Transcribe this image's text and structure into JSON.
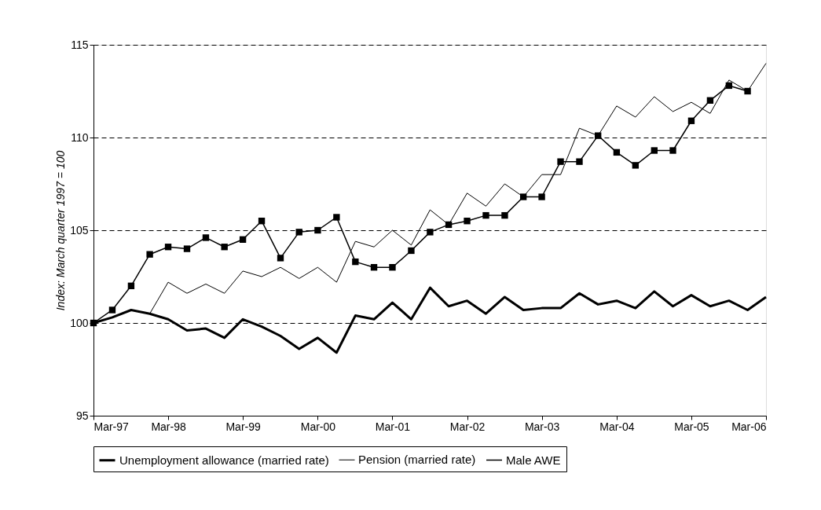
{
  "chart_data": {
    "type": "line",
    "ylabel": "Index: March quarter 1997 = 100",
    "x": [
      "1997-03",
      "1997-06",
      "1997-09",
      "1997-12",
      "1998-03",
      "1998-06",
      "1998-09",
      "1998-12",
      "1999-03",
      "1999-06",
      "1999-09",
      "1999-12",
      "2000-03",
      "2000-06",
      "2000-09",
      "2000-12",
      "2001-03",
      "2001-06",
      "2001-09",
      "2001-12",
      "2002-03",
      "2002-06",
      "2002-09",
      "2002-12",
      "2003-03",
      "2003-06",
      "2003-09",
      "2003-12",
      "2004-03",
      "2004-06",
      "2004-09",
      "2004-12",
      "2005-03",
      "2005-06",
      "2005-09",
      "2005-12",
      "2006-03"
    ],
    "series": [
      {
        "name": "Unemployment allowance (married rate)",
        "color": "#000000",
        "marker": "none",
        "values": [
          100.0,
          100.3,
          100.7,
          100.5,
          100.2,
          99.6,
          99.7,
          99.2,
          100.2,
          99.8,
          99.3,
          98.6,
          99.2,
          98.4,
          100.4,
          100.2,
          101.1,
          100.2,
          101.9,
          100.9,
          101.2,
          100.5,
          101.4,
          100.7,
          100.8,
          100.8,
          101.6,
          101.0,
          101.2,
          100.8,
          101.7,
          100.9,
          101.5,
          100.9,
          101.2,
          100.7,
          101.4
        ]
      },
      {
        "name": "Pension (married rate)",
        "color": "#000000",
        "marker": "none",
        "values": [
          100.0,
          100.3,
          100.7,
          100.5,
          102.2,
          101.6,
          102.1,
          101.6,
          102.8,
          102.5,
          103.0,
          102.4,
          103.0,
          102.2,
          104.4,
          104.1,
          105.0,
          104.2,
          106.1,
          105.3,
          107.0,
          106.3,
          107.5,
          106.8,
          108.0,
          108.0,
          110.5,
          110.1,
          111.7,
          111.1,
          112.2,
          111.4,
          111.9,
          111.3,
          113.1,
          112.5,
          114.0
        ]
      },
      {
        "name": "Male AWE",
        "color": "#000000",
        "marker": "square",
        "values": [
          100.0,
          100.7,
          102.0,
          103.7,
          104.1,
          104.0,
          104.6,
          104.1,
          104.5,
          105.5,
          103.5,
          104.9,
          105.0,
          105.7,
          103.3,
          103.0,
          103.0,
          103.9,
          104.9,
          105.3,
          105.5,
          105.8,
          105.8,
          106.8,
          106.8,
          108.7,
          108.7,
          110.1,
          109.2,
          108.5,
          109.3,
          109.3,
          110.9,
          112.0,
          112.8,
          112.5,
          null
        ]
      }
    ],
    "xlim": [
      "1997-03",
      "2006-03"
    ],
    "xticks": [
      {
        "value": "1997-03",
        "label": "Mar-97"
      },
      {
        "value": "1998-03",
        "label": "Mar-98"
      },
      {
        "value": "1999-03",
        "label": "Mar-99"
      },
      {
        "value": "2000-03",
        "label": "Mar-00"
      },
      {
        "value": "2001-03",
        "label": "Mar-01"
      },
      {
        "value": "2002-03",
        "label": "Mar-02"
      },
      {
        "value": "2003-03",
        "label": "Mar-03"
      },
      {
        "value": "2004-03",
        "label": "Mar-04"
      },
      {
        "value": "2005-03",
        "label": "Mar-05"
      },
      {
        "value": "2006-03",
        "label": "Mar-06"
      }
    ],
    "ylim": [
      95,
      115
    ],
    "yticks": [
      95,
      100,
      105,
      110,
      115
    ],
    "grid": "y",
    "legend": "bottom",
    "line_style": "solid"
  }
}
